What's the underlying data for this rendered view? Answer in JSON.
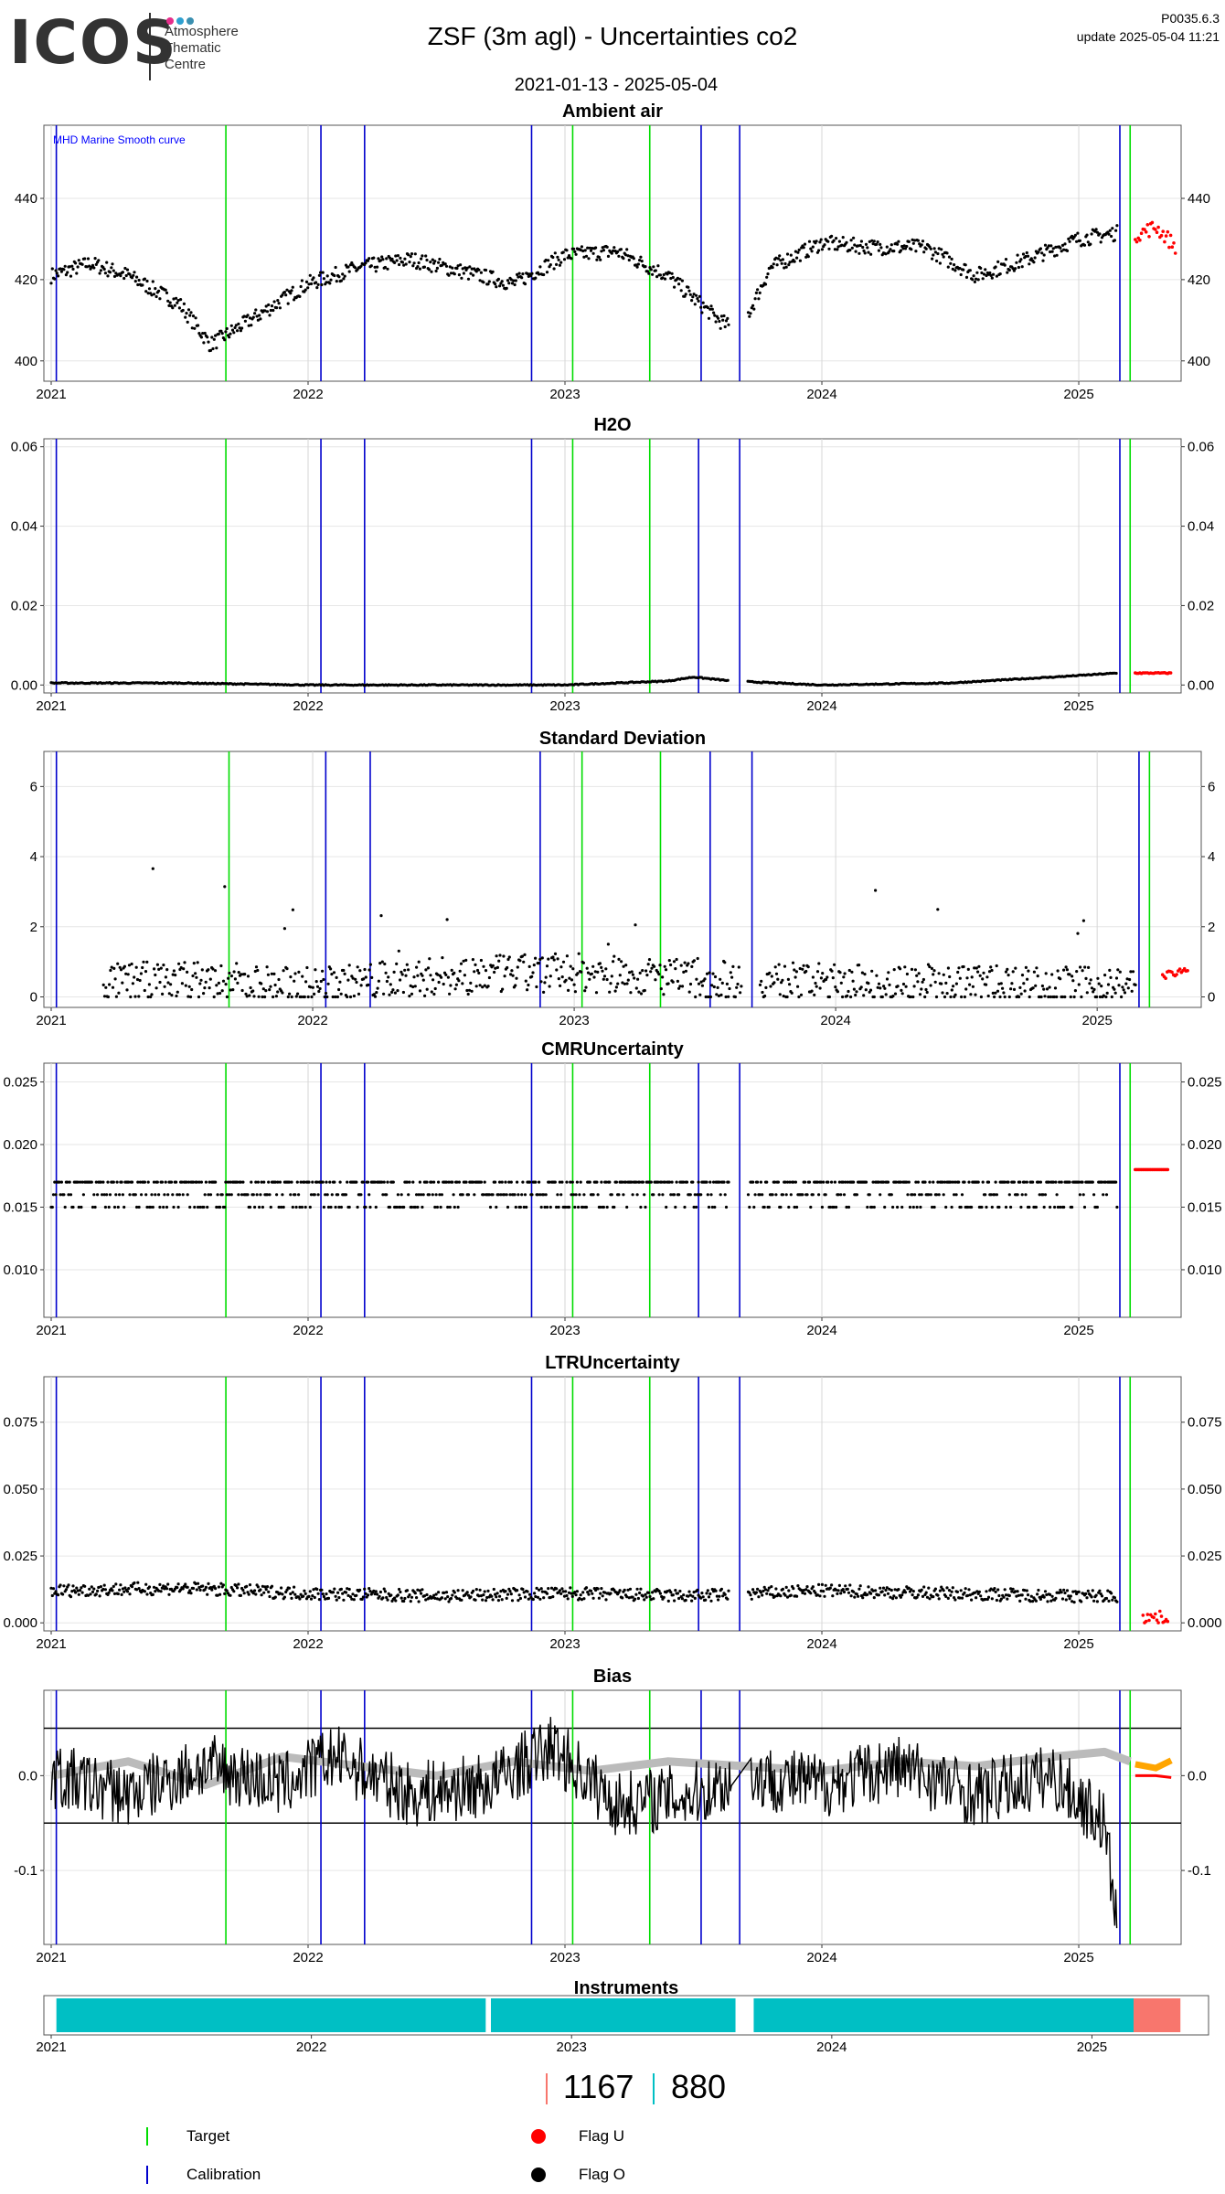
{
  "header": {
    "logo": "ICOS",
    "logo_sub": "Atmosphere\nThematic\nCentre",
    "title": "ZSF  (3m agl) - Uncertainties co2",
    "version": "P0035.6.3",
    "update": "update  2025-05-04 11:21",
    "date_range": "2021-01-13 - 2025-05-04"
  },
  "colors": {
    "target": "#00dd00",
    "calibration": "#0000cc",
    "flag_u": "#ff0000",
    "flag_o": "#000000",
    "grey_curve": "#bbbbbb",
    "orange_curve": "#ffa500",
    "instrument_a": "#00bfc4",
    "instrument_b": "#f8766d"
  },
  "chart_data": [
    {
      "type": "scatter",
      "title": "Ambient air",
      "annotation": "MHD Marine Smooth curve",
      "x_tick_labels": [
        "2021",
        "2022",
        "2023",
        "2024",
        "2025"
      ],
      "ylim": [
        395,
        458
      ],
      "yticks": [
        400,
        420,
        440
      ],
      "y_tick_labels": [
        "400",
        "420",
        "440"
      ],
      "right_axis": true,
      "calibration_x": [
        2021.02,
        2022.05,
        2022.22,
        2022.87,
        2023.53,
        2023.68,
        2025.16
      ],
      "target_x": [
        2021.68,
        2023.03,
        2023.33,
        2025.2
      ],
      "series_o": {
        "x": [
          2021.0,
          2021.15,
          2021.3,
          2021.5,
          2021.62,
          2021.8,
          2022.0,
          2022.2,
          2022.4,
          2022.6,
          2022.8,
          2023.0,
          2023.2,
          2023.4,
          2023.6,
          2023.68,
          2023.8,
          2024.0,
          2024.2,
          2024.4,
          2024.6,
          2024.8,
          2025.0,
          2025.2
        ],
        "y": [
          421,
          424,
          421,
          414,
          404,
          411,
          419,
          423,
          425,
          422,
          419,
          426,
          427,
          421,
          410,
          407,
          423,
          429,
          428,
          428,
          421,
          425,
          430,
          432
        ]
      },
      "series_u": {
        "x": [
          2025.22,
          2025.3,
          2025.38
        ],
        "y": [
          431,
          433,
          428
        ]
      }
    },
    {
      "type": "scatter",
      "title": "H2O",
      "x_tick_labels": [
        "2021",
        "2022",
        "2023",
        "2024",
        "2025"
      ],
      "ylim": [
        -0.002,
        0.062
      ],
      "yticks": [
        0.0,
        0.02,
        0.04,
        0.06
      ],
      "y_tick_labels": [
        "0.00",
        "0.02",
        "0.04",
        "0.06"
      ],
      "right_axis": true,
      "calibration_x": [
        2021.02,
        2022.05,
        2022.22,
        2022.87,
        2023.52,
        2023.68,
        2025.16
      ],
      "target_x": [
        2021.68,
        2023.03,
        2023.33,
        2025.2
      ],
      "series_o": {
        "x": [
          2021.0,
          2021.5,
          2022.0,
          2022.5,
          2023.0,
          2023.4,
          2023.5,
          2023.65,
          2024.0,
          2024.5,
          2024.9,
          2025.15
        ],
        "y": [
          0.0005,
          0.0005,
          0.0,
          0.0,
          0.0,
          0.001,
          0.002,
          0.001,
          0.0,
          0.0005,
          0.002,
          0.003
        ]
      },
      "series_u": {
        "x": [
          2025.22,
          2025.3,
          2025.36
        ],
        "y": [
          0.003,
          0.003,
          0.003
        ]
      }
    },
    {
      "type": "scatter",
      "title": "Standard Deviation",
      "x_tick_labels": [
        "2021",
        "2022",
        "2023",
        "2024",
        "2025"
      ],
      "ylim": [
        -0.3,
        7.0
      ],
      "yticks": [
        0,
        2,
        4,
        6
      ],
      "y_tick_labels": [
        "0",
        "2",
        "4",
        "6"
      ],
      "right_axis": true,
      "calibration_x": [
        2021.02,
        2022.05,
        2022.22,
        2022.87,
        2023.52,
        2023.68,
        2025.16
      ],
      "target_x": [
        2021.68,
        2023.03,
        2023.33,
        2025.2
      ],
      "series_o": {
        "x": [
          2021.2,
          2021.5,
          2022.0,
          2022.5,
          2023.0,
          2023.5,
          2024.0,
          2024.5,
          2025.0
        ],
        "y": [
          0.4,
          0.5,
          0.3,
          0.6,
          0.7,
          0.5,
          0.4,
          0.4,
          0.3
        ]
      },
      "series_u": {
        "x": [
          2025.25,
          2025.35
        ],
        "y": [
          0.6,
          0.8
        ]
      }
    },
    {
      "type": "scatter",
      "title": "CMRUncertainty",
      "x_tick_labels": [
        "2021",
        "2022",
        "2023",
        "2024",
        "2025"
      ],
      "ylim": [
        0.0062,
        0.0265
      ],
      "yticks": [
        0.01,
        0.015,
        0.02,
        0.025
      ],
      "y_tick_labels": [
        "0.010",
        "0.015",
        "0.020",
        "0.025"
      ],
      "right_axis": true,
      "calibration_x": [
        2021.02,
        2022.05,
        2022.22,
        2022.87,
        2023.52,
        2023.68,
        2025.16
      ],
      "target_x": [
        2021.68,
        2023.03,
        2023.33,
        2025.2
      ],
      "series_o": {
        "x": [
          2021.0,
          2022.0,
          2023.0,
          2024.0,
          2025.0
        ],
        "y": [
          0.017,
          0.017,
          0.017,
          0.017,
          0.017
        ]
      },
      "series_u": {
        "x": [
          2025.22,
          2025.35
        ],
        "y": [
          0.018,
          0.018
        ]
      }
    },
    {
      "type": "scatter",
      "title": "LTRUncertainty",
      "x_tick_labels": [
        "2021",
        "2022",
        "2023",
        "2024",
        "2025"
      ],
      "ylim": [
        -0.003,
        0.092
      ],
      "yticks": [
        0.0,
        0.025,
        0.05,
        0.075
      ],
      "y_tick_labels": [
        "0.000",
        "0.025",
        "0.050",
        "0.075"
      ],
      "right_axis": true,
      "calibration_x": [
        2021.02,
        2022.05,
        2022.22,
        2022.87,
        2023.52,
        2023.68,
        2025.16
      ],
      "target_x": [
        2021.68,
        2023.03,
        2023.33,
        2025.2
      ],
      "series_o": {
        "x": [
          2021.0,
          2021.5,
          2022.0,
          2022.5,
          2023.0,
          2023.5,
          2024.0,
          2024.5,
          2025.0
        ],
        "y": [
          0.012,
          0.013,
          0.011,
          0.01,
          0.011,
          0.01,
          0.012,
          0.011,
          0.01
        ]
      },
      "series_u": {
        "x": [
          2025.25,
          2025.35
        ],
        "y": [
          0.002,
          0.002
        ]
      }
    },
    {
      "type": "line",
      "title": "Bias",
      "x_tick_labels": [
        "2021",
        "2022",
        "2023",
        "2024",
        "2025"
      ],
      "ylim": [
        -0.178,
        0.09
      ],
      "yticks": [
        -0.1,
        0.0
      ],
      "y_tick_labels": [
        "-0.1",
        "0.0"
      ],
      "hlines": [
        0.05,
        -0.05
      ],
      "right_axis": true,
      "calibration_x": [
        2021.02,
        2022.05,
        2022.22,
        2022.87,
        2023.53,
        2023.68,
        2025.16
      ],
      "target_x": [
        2021.68,
        2023.03,
        2023.33,
        2025.2
      ],
      "series_o": {
        "x": [
          2021.0,
          2021.3,
          2021.6,
          2021.9,
          2022.1,
          2022.4,
          2022.7,
          2022.95,
          2023.2,
          2023.5,
          2023.7,
          2024.0,
          2024.3,
          2024.6,
          2024.9,
          2025.1,
          2025.15
        ],
        "y": [
          0.0,
          -0.02,
          0.01,
          -0.01,
          0.02,
          -0.02,
          -0.01,
          0.03,
          -0.03,
          -0.02,
          0.0,
          -0.01,
          0.01,
          -0.02,
          0.0,
          -0.05,
          -0.16
        ]
      },
      "series_grey": {
        "x": [
          2021.0,
          2021.3,
          2021.6,
          2021.9,
          2022.2,
          2022.5,
          2022.8,
          2023.1,
          2023.4,
          2023.7,
          2024.0,
          2024.3,
          2024.6,
          2024.9,
          2025.1,
          2025.2
        ],
        "y": [
          0.0,
          0.015,
          -0.01,
          0.02,
          0.01,
          0.0,
          0.015,
          0.005,
          0.015,
          0.01,
          0.005,
          0.015,
          0.01,
          0.02,
          0.025,
          0.015
        ]
      },
      "series_u": {
        "x": [
          2025.22,
          2025.3,
          2025.36
        ],
        "y": [
          0.0,
          0.0,
          -0.002
        ]
      },
      "series_orange": {
        "x": [
          2025.22,
          2025.3,
          2025.36
        ],
        "y": [
          0.012,
          0.008,
          0.016
        ]
      }
    },
    {
      "type": "bar",
      "title": "Instruments",
      "x_tick_labels": [
        "2021",
        "2022",
        "2023",
        "2024",
        "2025"
      ],
      "segments": [
        {
          "start": 2021.02,
          "end": 2022.67,
          "instrument": "880"
        },
        {
          "start": 2022.69,
          "end": 2023.63,
          "instrument": "880"
        },
        {
          "start": 2023.7,
          "end": 2025.16,
          "instrument": "880"
        },
        {
          "start": 2025.16,
          "end": 2025.34,
          "instrument": "1167"
        }
      ]
    }
  ],
  "instrument_legend": {
    "a": "1167",
    "b": "880"
  },
  "legend": {
    "target": "Target",
    "calibration": "Calibration",
    "flag_u": "Flag U",
    "flag_o": "Flag O"
  }
}
